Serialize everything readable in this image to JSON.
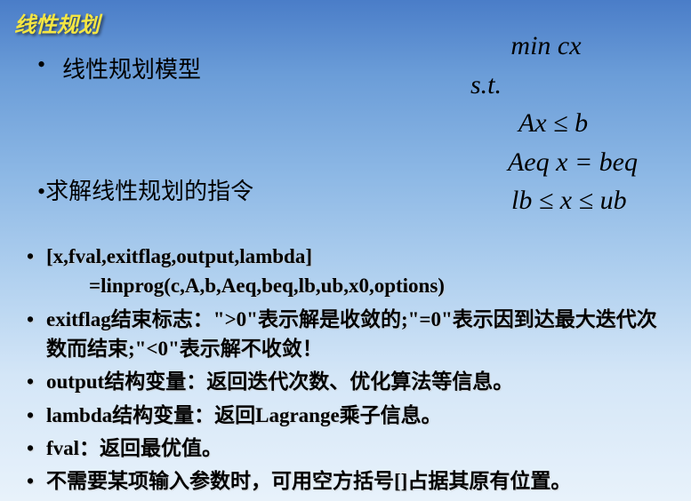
{
  "title": "线性规划",
  "top_bullets": [
    "线性规划模型",
    "求解线性规划的指令"
  ],
  "math": {
    "line1": "min cx",
    "line2": "s.t.",
    "line3": "Ax ≤ b",
    "line4": "Aeq x = beq",
    "line5": "lb ≤ x ≤ ub"
  },
  "code": {
    "out": "[x,fval,exitflag,output,lambda]",
    "call": "=linprog(c,A,b,Aeq,beq,lb,ub,x0,options)"
  },
  "desc": {
    "exitflag": "exitflag结束标志：\">0\"表示解是收敛的;\"=0\"表示因到达最大迭代次数而结束;\"<0\"表示解不收敛！",
    "output": "output结构变量：返回迭代次数、优化算法等信息。",
    "lambda": "lambda结构变量：返回Lagrange乘子信息。",
    "fval": "fval：返回最优值。",
    "empty": "不需要某项输入参数时，可用空方括号[]占据其原有位置。"
  },
  "colors": {
    "title_color": "#f5e642",
    "text_color": "#000000",
    "bg_top": "#4a7dc8",
    "bg_bottom": "#e8f2fb"
  }
}
